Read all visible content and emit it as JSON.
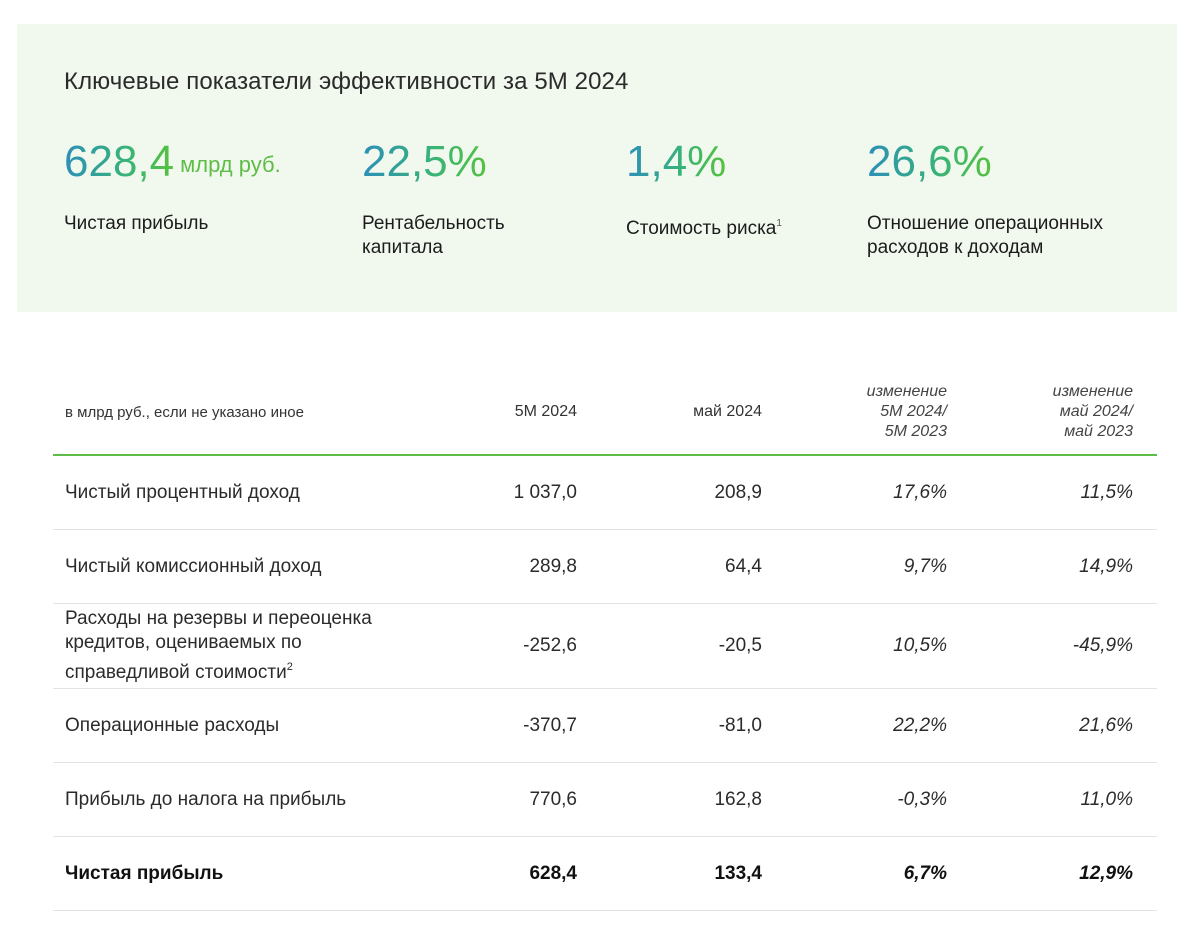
{
  "kpi_section": {
    "title": "Ключевые показатели эффективности за 5M 2024",
    "items": [
      {
        "value": "628,4",
        "unit": "млрд руб.",
        "label": "Чистая прибыль",
        "footnote": ""
      },
      {
        "value": "22,5%",
        "unit": "",
        "label": "Рентабельность капитала",
        "footnote": ""
      },
      {
        "value": "1,4%",
        "unit": "",
        "label": "Стоимость риска",
        "footnote": "1"
      },
      {
        "value": "26,6%",
        "unit": "",
        "label": "Отношение операционных расходов к доходам",
        "footnote": ""
      }
    ]
  },
  "table": {
    "header": {
      "label": "в млрд руб., если не указано иное",
      "col1": "5M 2024",
      "col2": "май 2024",
      "col3": [
        "изменение",
        "5M 2024/",
        "5M 2023"
      ],
      "col4": [
        "изменение",
        "май 2024/",
        "май 2023"
      ]
    },
    "rows": [
      {
        "label": "Чистый процентный доход",
        "footnote": "",
        "c1": "1 037,0",
        "c2": "208,9",
        "c3": "17,6%",
        "c4": "11,5%"
      },
      {
        "label": "Чистый комиссионный доход",
        "footnote": "",
        "c1": "289,8",
        "c2": "64,4",
        "c3": "9,7%",
        "c4": "14,9%"
      },
      {
        "label": "Расходы на резервы и переоценка кредитов, оцениваемых по справедливой стоимости",
        "footnote": "2",
        "c1": "-252,6",
        "c2": "-20,5",
        "c3": "10,5%",
        "c4": "-45,9%"
      },
      {
        "label": "Операционные расходы",
        "footnote": "",
        "c1": "-370,7",
        "c2": "-81,0",
        "c3": "22,2%",
        "c4": "21,6%"
      },
      {
        "label": "Прибыль до налога на прибыль",
        "footnote": "",
        "c1": "770,6",
        "c2": "162,8",
        "c3": "-0,3%",
        "c4": "11,0%"
      },
      {
        "label": "Чистая прибыль",
        "footnote": "",
        "c1": "628,4",
        "c2": "133,4",
        "c3": "6,7%",
        "c4": "12,9%"
      }
    ]
  }
}
